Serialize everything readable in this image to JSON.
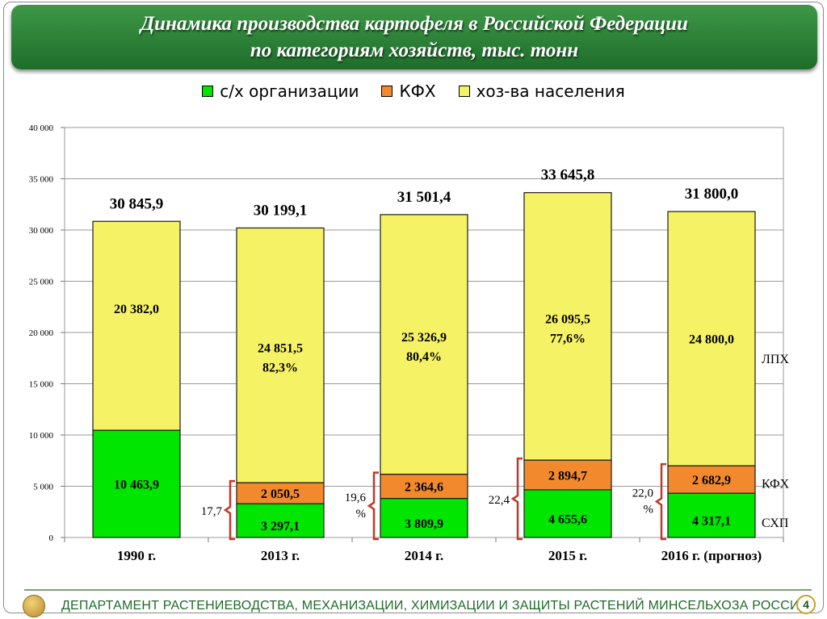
{
  "header": {
    "title_line1": "Динамика производства картофеля в Российской Федерации",
    "title_line2": "по категориям хозяйств, тыс. тонн"
  },
  "legend": {
    "items": [
      {
        "label": "с/х организации",
        "color": "#00e600"
      },
      {
        "label": "КФХ",
        "color": "#f2892d"
      },
      {
        "label": "хоз-ва населения",
        "color": "#f5f266"
      }
    ]
  },
  "chart_data": {
    "type": "bar",
    "stacked": true,
    "categories": [
      "1990 г.",
      "2013 г.",
      "2014 г.",
      "2015 г.",
      "2016 г. (прогноз)"
    ],
    "ylim": [
      0,
      40000
    ],
    "yticks": [
      0,
      5000,
      10000,
      15000,
      20000,
      25000,
      30000,
      35000,
      40000
    ],
    "ytick_labels": [
      "0",
      "5 000",
      "10 000",
      "15 000",
      "20 000",
      "25 000",
      "30 000",
      "35 000",
      "40 000"
    ],
    "grid": true,
    "legend_position": "top",
    "series": [
      {
        "name": "с/х организации",
        "color": "#00e600",
        "values": [
          10463.9,
          3297.1,
          3809.9,
          4655.6,
          4317.1
        ],
        "labels": [
          "10 463,9",
          "3 297,1",
          "3 809,9",
          "4 655,6",
          "4 317,1"
        ]
      },
      {
        "name": "КФХ",
        "color": "#f2892d",
        "values": [
          0,
          2050.5,
          2364.6,
          2894.7,
          2682.9
        ],
        "labels": [
          "",
          "2 050,5",
          "2 364,6",
          "2 894,7",
          "2 682,9"
        ]
      },
      {
        "name": "хоз-ва населения",
        "color": "#f5f266",
        "values": [
          20382.0,
          24851.5,
          25326.9,
          26095.5,
          24800.0
        ],
        "labels": [
          "20 382,0",
          "24 851,5",
          "25 326,9",
          "26 095,5",
          "24 800,0"
        ],
        "share_labels": [
          "",
          "82,3%",
          "80,4%",
          "77,6%",
          ""
        ]
      }
    ],
    "totals": [
      30845.9,
      30199.1,
      31501.4,
      33645.8,
      31800.0
    ],
    "total_labels": [
      "30 845,9",
      "30 199,1",
      "31 501,4",
      "33 645,8",
      "31 800,0"
    ],
    "brackets": [
      {
        "bar": 1,
        "lines": [
          "17,7"
        ]
      },
      {
        "bar": 2,
        "lines": [
          "19,6",
          "%"
        ]
      },
      {
        "bar": 3,
        "lines": [
          "22,4"
        ]
      },
      {
        "bar": 4,
        "lines": [
          "22,0",
          "%"
        ]
      }
    ],
    "side_labels": [
      {
        "text": "ЛПХ",
        "value": 17500
      },
      {
        "text": "КФХ",
        "value": 5300
      },
      {
        "text": "СХП",
        "value": 1500
      }
    ]
  },
  "footer": {
    "text": "ДЕПАРТАМЕНТ РАСТЕНИЕВОДСТВА, МЕХАНИЗАЦИИ, ХИМИЗАЦИИ И ЗАЩИТЫ РАСТЕНИЙ МИНСЕЛЬХОЗА РОССИИ",
    "page_number": "4"
  }
}
